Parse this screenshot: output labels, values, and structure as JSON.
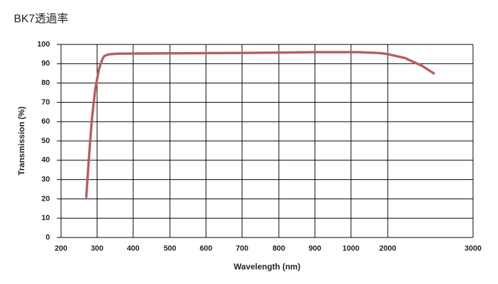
{
  "chart_data": {
    "type": "line",
    "title": "BK7透過率",
    "xlabel": "Wavelength (nm)",
    "ylabel": "Transmission (%)",
    "x": [
      270,
      275,
      280,
      285,
      290,
      295,
      300,
      305,
      310,
      315,
      320,
      330,
      340,
      360,
      400,
      500,
      600,
      700,
      800,
      900,
      1000,
      1200,
      1500,
      1800,
      2000,
      2200,
      2400,
      2540
    ],
    "values": [
      21,
      35,
      48,
      60,
      69,
      77,
      82,
      87,
      90,
      92.5,
      94,
      94.8,
      95,
      95.2,
      95.3,
      95.4,
      95.5,
      95.6,
      95.8,
      96,
      96,
      96,
      95.8,
      95.5,
      95,
      93,
      89,
      85
    ],
    "color": "#b5605f",
    "xlim": [
      200,
      3000
    ],
    "xticks": [
      200,
      300,
      400,
      500,
      600,
      700,
      800,
      900,
      1000,
      2000,
      3000
    ],
    "ylim": [
      0,
      100
    ],
    "yticks": [
      0,
      10,
      20,
      30,
      40,
      50,
      60,
      70,
      80,
      90,
      100
    ],
    "grid": true
  }
}
